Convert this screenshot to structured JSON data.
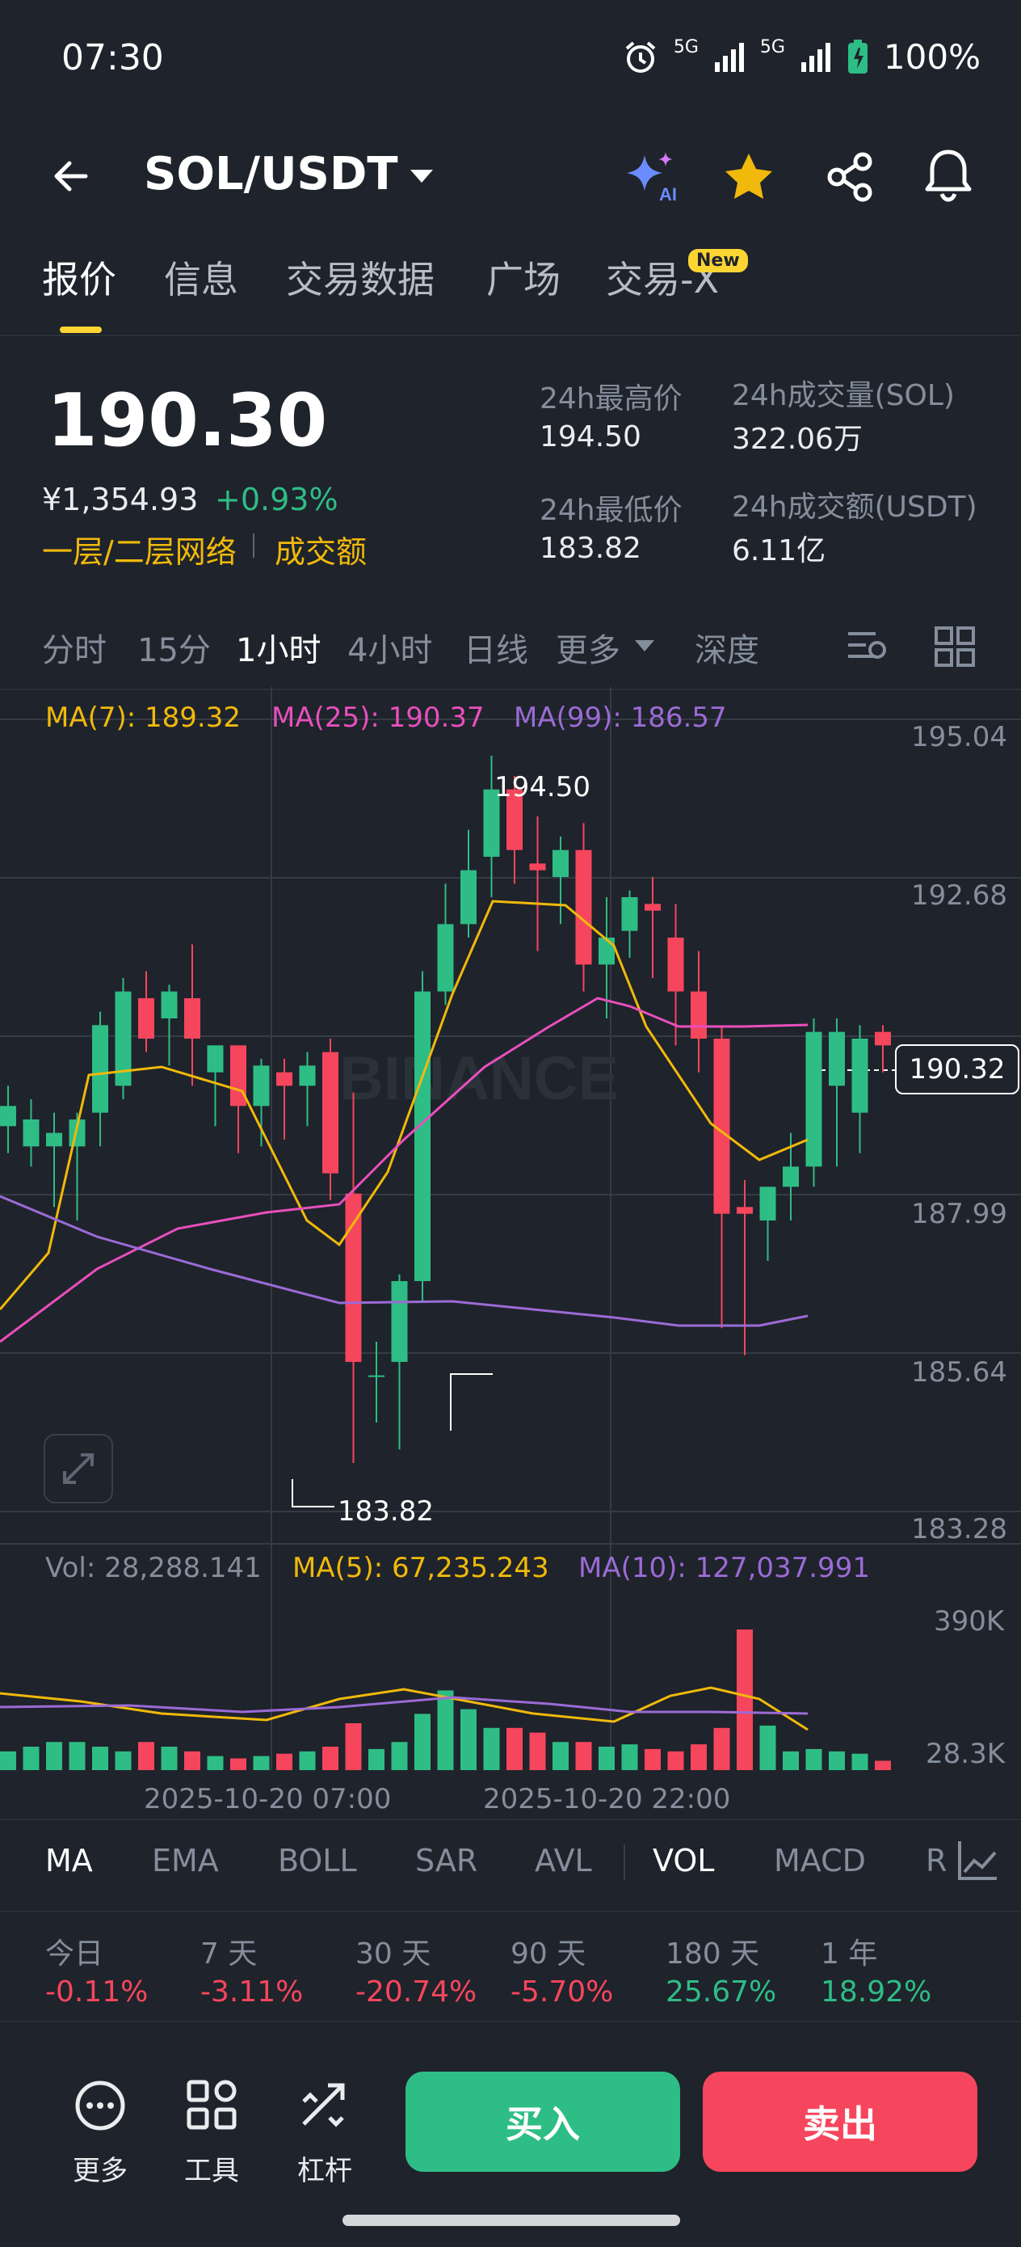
{
  "status": {
    "time": "07:30",
    "net1": "5G",
    "net2": "5G",
    "battery": "100%"
  },
  "header": {
    "pair": "SOL/USDT"
  },
  "tabs": [
    {
      "label": "报价"
    },
    {
      "label": "信息"
    },
    {
      "label": "交易数据"
    },
    {
      "label": "广场"
    },
    {
      "label": "交易-X"
    }
  ],
  "new_badge": "New",
  "ticker": {
    "last": "190.30",
    "cny": "¥1,354.93",
    "change": "+0.93%",
    "network": "一层/二层网络",
    "turnover_label": "成交额",
    "high_label": "24h最高价",
    "high": "194.50",
    "low_label": "24h最低价",
    "low": "183.82",
    "vol_sol_label": "24h成交量(SOL)",
    "vol_sol": "322.06万",
    "vol_usdt_label": "24h成交额(USDT)",
    "vol_usdt": "6.11亿"
  },
  "intervals": [
    "分时",
    "15分",
    "1小时",
    "4小时",
    "日线",
    "更多",
    "深度"
  ],
  "ma": {
    "ma7": "MA(7): 189.32",
    "ma25": "MA(25): 190.37",
    "ma99": "MA(99): 186.57"
  },
  "y_axis": [
    "195.04",
    "192.68",
    "187.99",
    "185.64",
    "183.28"
  ],
  "current_price_tag": "190.32",
  "high_marker": "194.50",
  "low_marker": "183.82",
  "watermark": "BINANCE",
  "vol": {
    "vol": "Vol: 28,288.141",
    "ma5": "MA(5): 67,235.243",
    "ma10": "MA(10): 127,037.991"
  },
  "vol_axis": [
    "390K",
    "28.3K"
  ],
  "x_axis": [
    "2025-10-20 07:00",
    "2025-10-20 22:00"
  ],
  "indicators": [
    "MA",
    "EMA",
    "BOLL",
    "SAR",
    "AVL",
    "VOL",
    "MACD",
    "R"
  ],
  "performance": [
    {
      "label": "今日",
      "value": "-0.11%"
    },
    {
      "label": "7 天",
      "value": "-3.11%"
    },
    {
      "label": "30 天",
      "value": "-20.74%"
    },
    {
      "label": "90 天",
      "value": "-5.70%"
    },
    {
      "label": "180 天",
      "value": "25.67%"
    },
    {
      "label": "1 年",
      "value": "18.92%"
    }
  ],
  "bottom": {
    "more": "更多",
    "tools": "工具",
    "leverage": "杠杆",
    "buy": "买入",
    "sell": "卖出"
  },
  "colors": {
    "up": "#2ebd85",
    "down": "#f6465d",
    "accent": "#fcd535",
    "ma7": "#f0b90b",
    "ma25": "#e84fbd",
    "ma99": "#9b6bd6"
  }
}
